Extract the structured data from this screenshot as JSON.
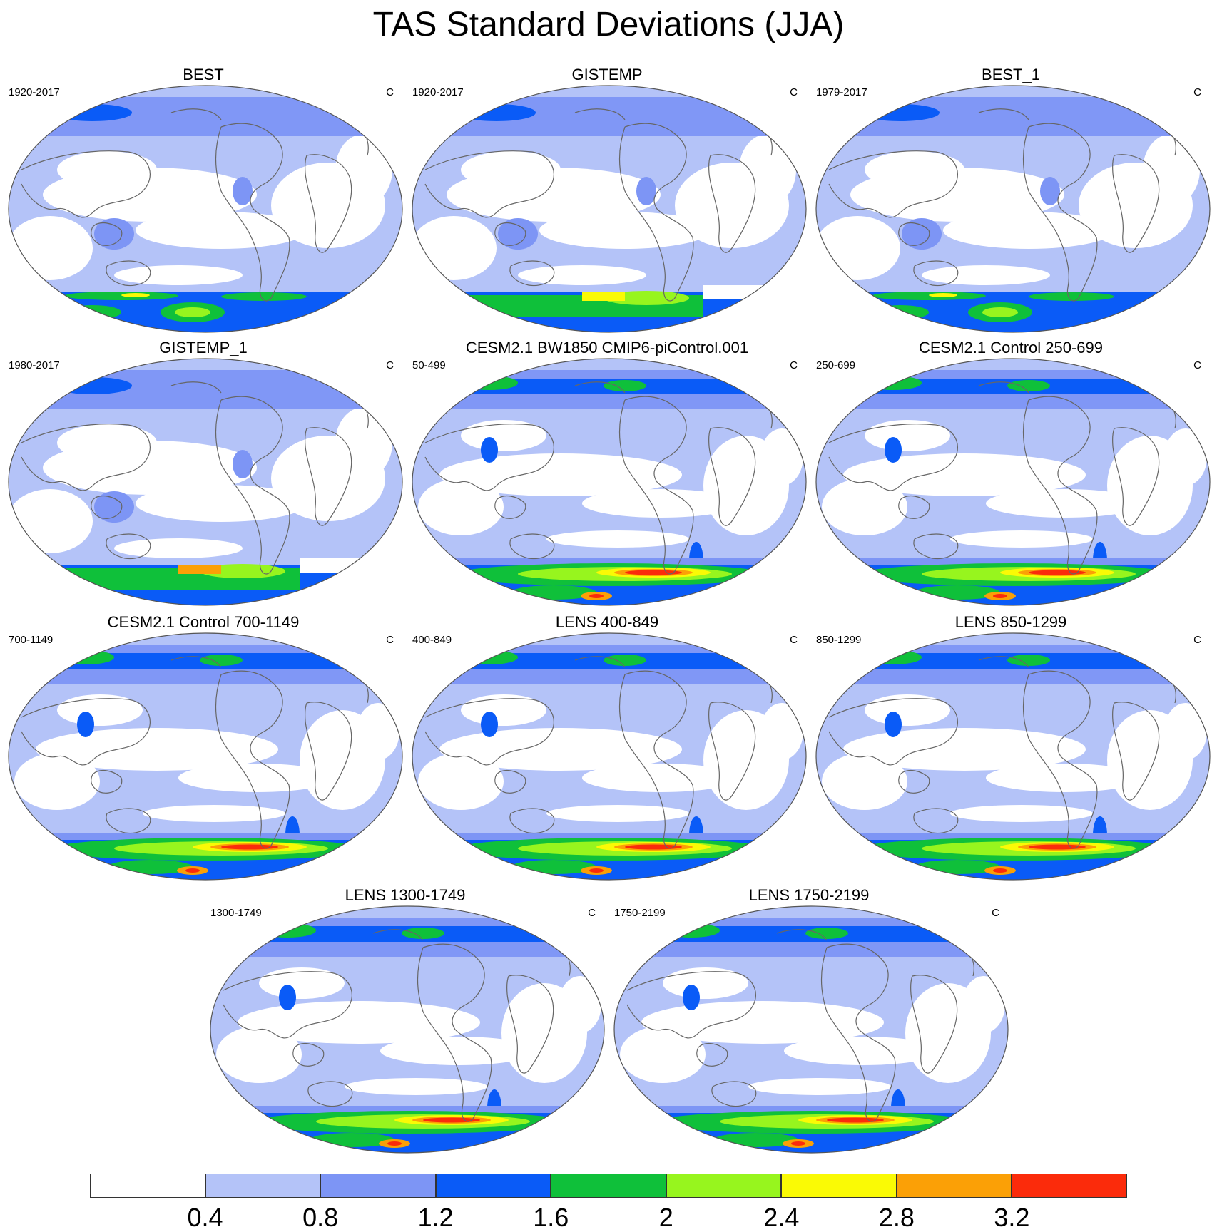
{
  "title": "TAS Standard Deviations (JJA)",
  "units": "C",
  "panels": [
    {
      "title": "BEST",
      "period": "1920-2017",
      "units": "C",
      "variant": "obs",
      "south": "obs1"
    },
    {
      "title": "GISTEMP",
      "period": "1920-2017",
      "units": "C",
      "variant": "obs",
      "south": "obs2"
    },
    {
      "title": "BEST_1",
      "period": "1979-2017",
      "units": "C",
      "variant": "obs",
      "south": "obs1"
    },
    {
      "title": "GISTEMP_1",
      "period": "1980-2017",
      "units": "C",
      "variant": "obs",
      "south": "obs2"
    },
    {
      "title": "CESM2.1 BW1850 CMIP6-piControl.001",
      "period": "50-499",
      "units": "C",
      "variant": "model",
      "south": "model"
    },
    {
      "title": "CESM2.1 Control 250-699",
      "period": "250-699",
      "units": "C",
      "variant": "model",
      "south": "model"
    },
    {
      "title": "CESM2.1 Control 700-1149",
      "period": "700-1149",
      "units": "C",
      "variant": "model",
      "south": "model"
    },
    {
      "title": "LENS 400-849",
      "period": "400-849",
      "units": "C",
      "variant": "model",
      "south": "model"
    },
    {
      "title": "LENS 850-1299",
      "period": "850-1299",
      "units": "C",
      "variant": "model",
      "south": "model"
    },
    {
      "title": "LENS 1300-1749",
      "period": "1300-1749",
      "units": "C",
      "variant": "model",
      "south": "model"
    },
    {
      "title": "LENS 1750-2199",
      "period": "1750-2199",
      "units": "C",
      "variant": "model",
      "south": "model"
    }
  ],
  "colorbar": {
    "levels": [
      "0.4",
      "0.8",
      "1.2",
      "1.6",
      "2",
      "2.4",
      "2.8",
      "3.2"
    ],
    "colors": [
      "#ffffff",
      "#b4c3f8",
      "#7d95f5",
      "#0a5bf7",
      "#0fc03a",
      "#97f51e",
      "#fafa05",
      "#fba006",
      "#fb2b0b"
    ]
  }
}
